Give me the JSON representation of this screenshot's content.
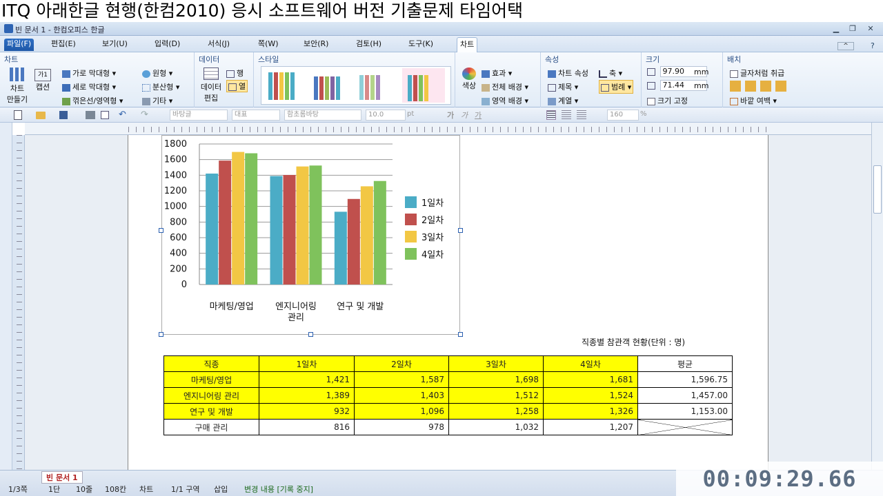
{
  "banner": "ITQ 아래한글 현행(한컴2010) 응시 소프트웨어 버전 기출문제 타임어택",
  "window": {
    "title": "빈 문서 1 - 한컴오피스 한글"
  },
  "menus": [
    "파일(F)",
    "편집(E)",
    "보기(U)",
    "입력(D)",
    "서식(J)",
    "쪽(W)",
    "보안(R)",
    "검토(H)",
    "도구(K)",
    "차트"
  ],
  "ribbon": {
    "chart": {
      "title": "차트",
      "make_line1": "차트",
      "make_line2": "만들기",
      "caption_line1": "캡션",
      "bar_h": "가로 막대형",
      "bar_v": "세로 막대형",
      "line_area": "꺾은선/영역형",
      "pie": "원형",
      "scatter": "분산형",
      "other": "기타"
    },
    "data": {
      "title": "데이터",
      "edit_line1": "데이터",
      "edit_line2": "편집",
      "row": "행",
      "col": "열"
    },
    "style": {
      "title": "스타일",
      "color": "색상"
    },
    "effect": {
      "effect": "효과",
      "bg_all": "전체 배경",
      "bg_area": "영역 배경"
    },
    "props": {
      "title": "속성",
      "chart_props": "차트 속성",
      "axis": "축",
      "heading": "제목",
      "legend": "범례",
      "series": "계열"
    },
    "size": {
      "title": "크기",
      "w": "97.90",
      "h": "71.44",
      "unit": "mm",
      "fix": "크기 고정"
    },
    "arrange": {
      "title": "배치",
      "as_char": "글자처럼 취급",
      "margin": "바깥 여백"
    }
  },
  "toolbar": {
    "style": "바탕글",
    "font_kind": "대표",
    "font": "함초롬바탕",
    "size": "10.0",
    "size_unit": "pt",
    "bold": "가",
    "italic": "가",
    "underline": "가",
    "ratio": "160",
    "ratio_unit": "%"
  },
  "chart_data": {
    "type": "bar",
    "categories": [
      "마케팅/영업",
      "엔지니어링 관리",
      "연구 및 개발"
    ],
    "category_lines": [
      [
        "마케팅/영업"
      ],
      [
        "엔지니어링",
        "관리"
      ],
      [
        "연구 및 개발"
      ]
    ],
    "series": [
      {
        "name": "1일차",
        "values": [
          1421,
          1389,
          932
        ],
        "color": "#4bacc6"
      },
      {
        "name": "2일차",
        "values": [
          1587,
          1403,
          1096
        ],
        "color": "#c0504d"
      },
      {
        "name": "3일차",
        "values": [
          1698,
          1512,
          1258
        ],
        "color": "#f2c744"
      },
      {
        "name": "4일차",
        "values": [
          1681,
          1524,
          1326
        ],
        "color": "#7fc25c"
      }
    ],
    "ylim": [
      0,
      1800
    ],
    "yticks": [
      "0",
      "200",
      "400",
      "600",
      "800",
      "1000",
      "1200",
      "1400",
      "1600",
      "1800"
    ],
    "grid": true,
    "legend": "right"
  },
  "caption": "직종별 참관객 현황(단위 : 명)",
  "table": {
    "headers": [
      "직종",
      "1일차",
      "2일차",
      "3일차",
      "4일차",
      "평균"
    ],
    "rows": [
      [
        "마케팅/영업",
        "1,421",
        "1,587",
        "1,698",
        "1,681",
        "1,596.75"
      ],
      [
        "엔지니어링 관리",
        "1,389",
        "1,403",
        "1,512",
        "1,524",
        "1,457.00"
      ],
      [
        "연구 및 개발",
        "932",
        "1,096",
        "1,258",
        "1,326",
        "1,153.00"
      ],
      [
        "구매 관리",
        "816",
        "978",
        "1,032",
        "1,207",
        ""
      ]
    ]
  },
  "status": {
    "page": "1/3쪽",
    "dan": "1단",
    "line": "10줄",
    "col": "108칸",
    "mode": "차트",
    "section": "1/1 구역",
    "insert": "삽입",
    "track": "변경 내용 [기록 중지]",
    "doc_tab": "빈 문서 1"
  },
  "timer": "00:09:29.66"
}
